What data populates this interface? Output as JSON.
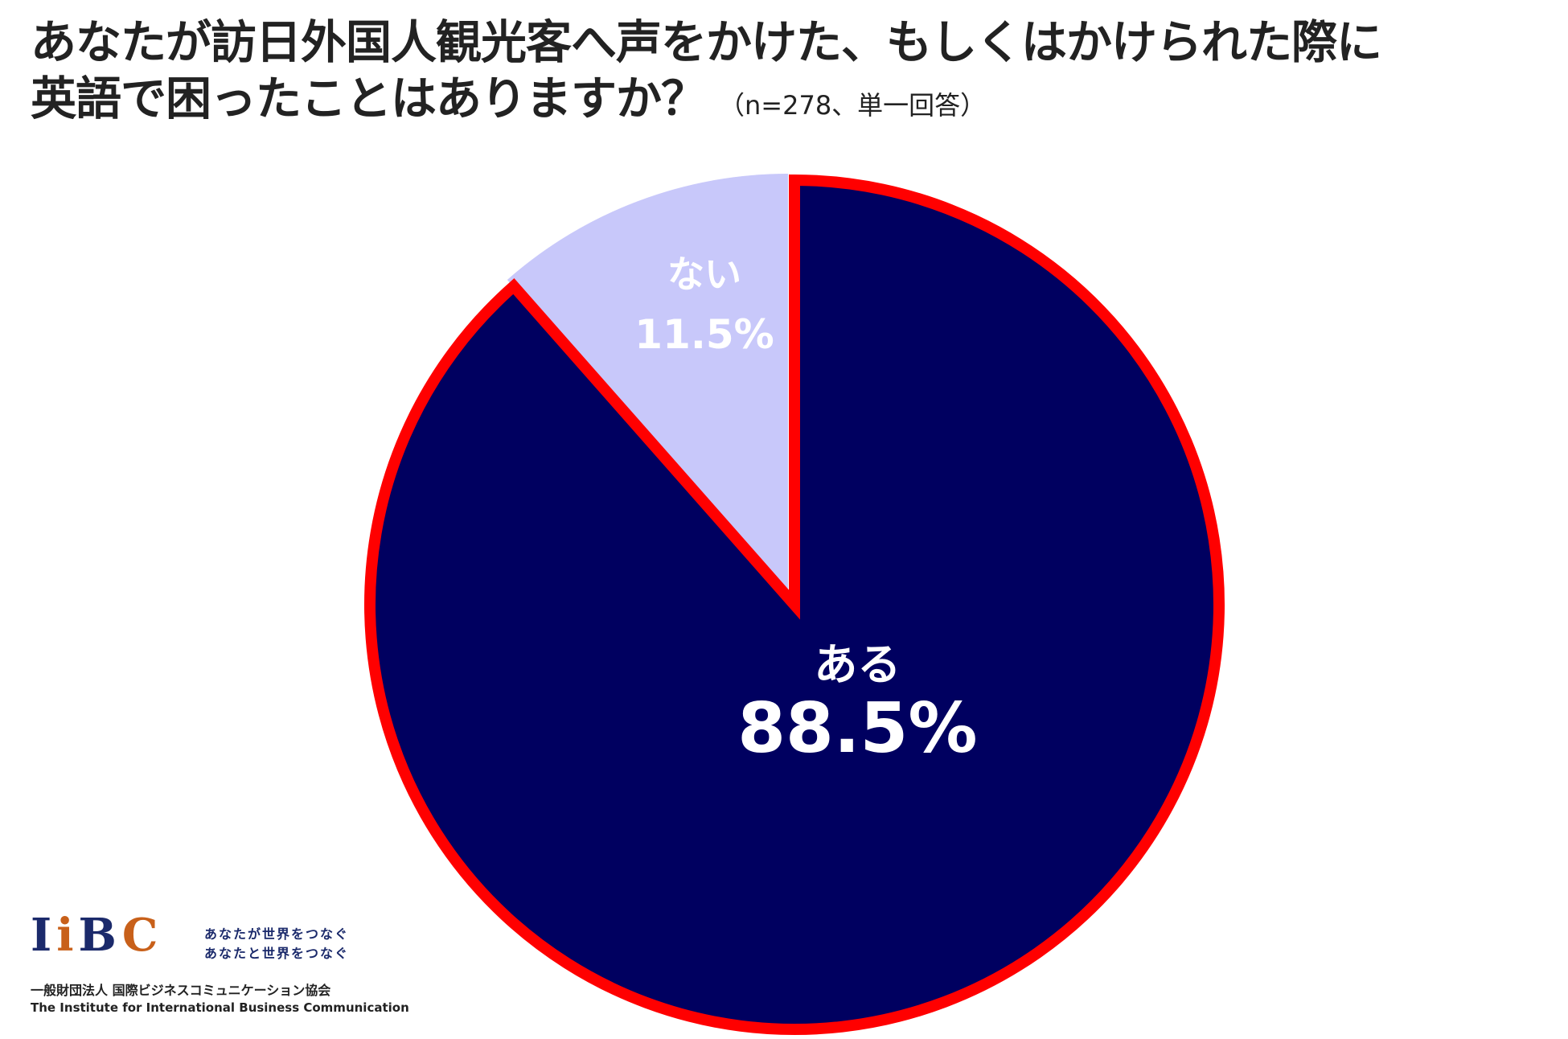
{
  "title": {
    "line1": "あなたが訪日外国人観光客へ声をかけた、もしくはかけられた際に",
    "line2": "英語で困ったことはありますか？",
    "subtitle": "（n=278、単一回答）"
  },
  "chart_data": {
    "type": "pie",
    "title": "あなたが訪日外国人観光客へ声をかけた、もしくはかけられた際に英語で困ったことはありますか？",
    "subtitle": "（n=278、単一回答）",
    "categories": [
      "ある",
      "ない"
    ],
    "values": [
      88.5,
      11.5
    ],
    "value_labels": [
      "88.5%",
      "11.5%"
    ],
    "colors": [
      "#000060",
      "#c8c8fa"
    ],
    "highlight": {
      "category": "ある",
      "outline_color": "#ff0000"
    },
    "start": "12 o'clock",
    "direction": "clockwise"
  },
  "logo": {
    "letters": [
      "I",
      "i",
      "B",
      "C"
    ],
    "slogan_line1": "あなたが世界をつなぐ",
    "slogan_line2": "あなたと世界をつなぐ",
    "org_jp": "一般財団法人 国際ビジネスコミュニケーション協会",
    "org_en": "The Institute for International Business Communication"
  }
}
